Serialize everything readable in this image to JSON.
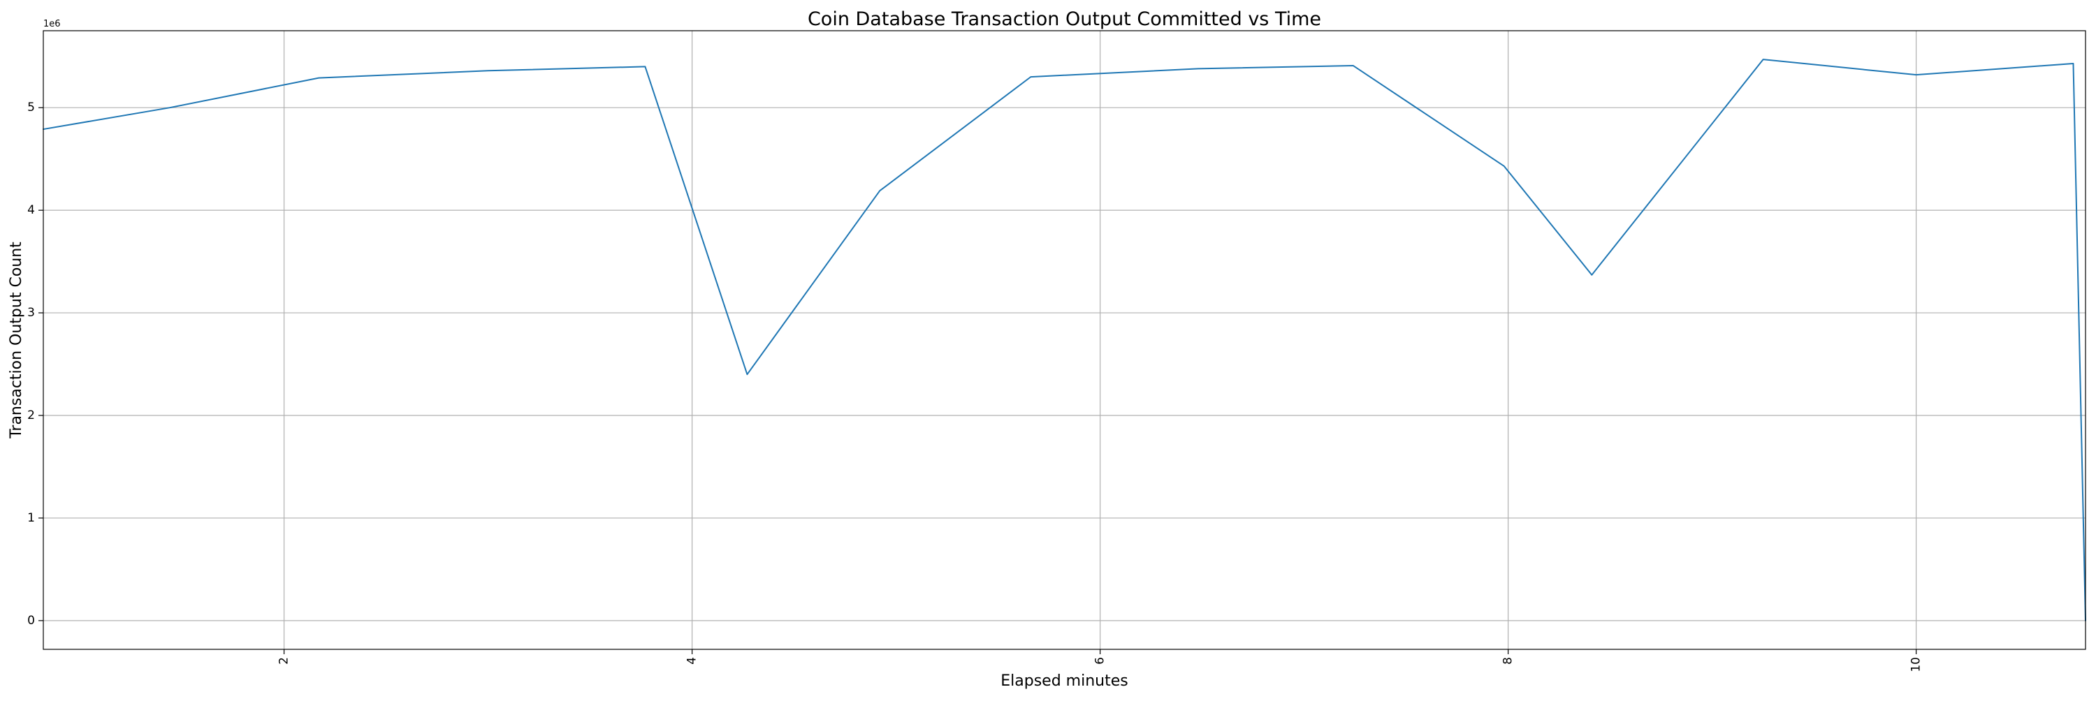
{
  "chart_data": {
    "type": "line",
    "title": "Coin Database Transaction Output Committed vs Time",
    "xlabel": "Elapsed minutes",
    "ylabel": "Transaction Output Count",
    "y_offset_label": "1e6",
    "xlim": [
      0.82,
      10.83
    ],
    "ylim": [
      -280000,
      5750000
    ],
    "x_ticks": [
      2,
      4,
      6,
      8,
      10
    ],
    "x_tick_labels": [
      "2",
      "4",
      "6",
      "8",
      "10"
    ],
    "x_tick_rotation": 90,
    "y_ticks": [
      0,
      1000000,
      2000000,
      3000000,
      4000000,
      5000000
    ],
    "y_tick_labels": [
      "0",
      "1",
      "2",
      "3",
      "4",
      "5"
    ],
    "grid": true,
    "series": [
      {
        "color": "#1f77b4",
        "x": [
          0.82,
          1.44,
          2.17,
          3.0,
          3.77,
          4.27,
          4.92,
          5.66,
          6.48,
          7.24,
          7.98,
          8.41,
          9.25,
          10.0,
          10.77,
          10.83
        ],
        "y": [
          4790000,
          5000000,
          5290000,
          5360000,
          5400000,
          2400000,
          4190000,
          5300000,
          5380000,
          5410000,
          4430000,
          3370000,
          5470000,
          5320000,
          5430000,
          0
        ]
      }
    ]
  }
}
